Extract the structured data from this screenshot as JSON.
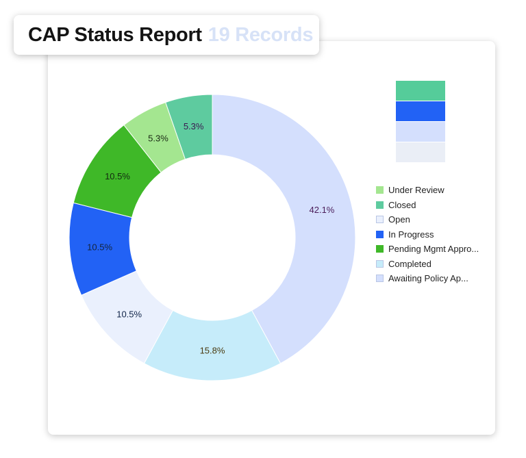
{
  "header": {
    "title": "CAP Status Report",
    "record_count": "19 Records"
  },
  "chart_data": {
    "type": "pie",
    "variant": "donut",
    "labels": [
      "Awaiting Policy Ap...",
      "Completed",
      "Open",
      "In Progress",
      "Pending Mgmt Appro...",
      "Under Review",
      "Closed"
    ],
    "values": [
      42.1,
      15.8,
      10.5,
      10.5,
      10.5,
      5.3,
      5.3
    ],
    "data_labels": [
      "42.1%",
      "15.8%",
      "10.5%",
      "10.5%",
      "10.5%",
      "5.3%",
      "5.3%"
    ],
    "colors": [
      "#d4dffd",
      "#c6ecfa",
      "#eaf0fd",
      "#2262f5",
      "#3fb828",
      "#a4e690",
      "#5ecb9f"
    ],
    "label_colors": [
      "#4a1d5a",
      "#4a3a10",
      "#0f2347",
      "#14243c",
      "#122a10",
      "#1a2a14",
      "#3a1850"
    ],
    "legend_position": "right",
    "legend": [
      {
        "label": "Under Review",
        "color": "#a4e690"
      },
      {
        "label": "Closed",
        "color": "#5ecb9f"
      },
      {
        "label": "Open",
        "color": "#eaf0fd"
      },
      {
        "label": "In Progress",
        "color": "#2262f5"
      },
      {
        "label": "Pending Mgmt Appro...",
        "color": "#3fb828"
      },
      {
        "label": "Completed",
        "color": "#c6ecfa"
      },
      {
        "label": "Awaiting Policy Ap...",
        "color": "#d4dffd"
      }
    ],
    "swatch_blocks": [
      "#55cc9a",
      "#2262f5",
      "#d4dffd",
      "#eaeef6"
    ]
  }
}
